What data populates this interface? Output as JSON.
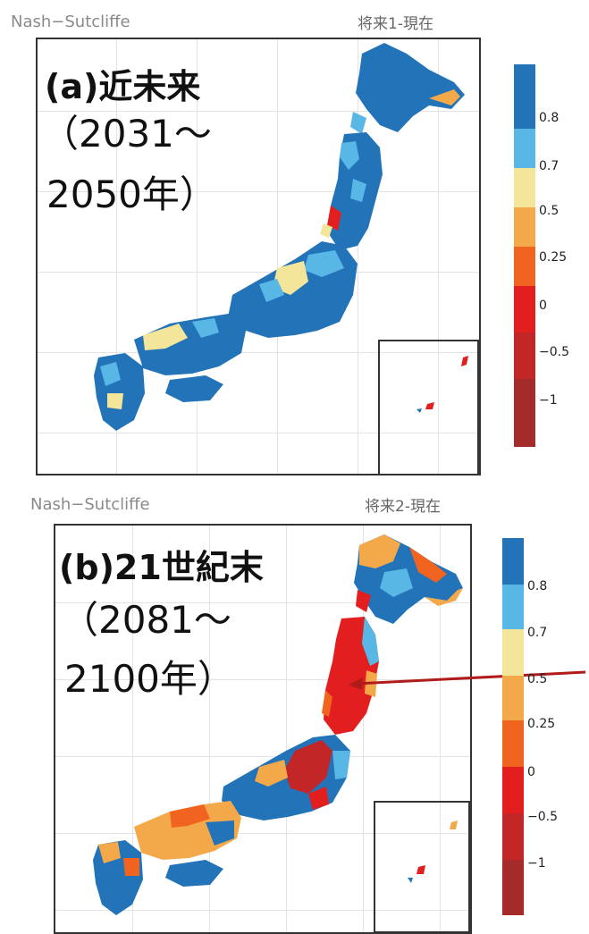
{
  "top_panel": {
    "metric_label": "Nash−Sutcliffe",
    "scenario_label": "将来1-現在",
    "title": "(a)近未来",
    "period_line1": "（2031～",
    "period_line2": "2050年）",
    "legend_ticks": [
      "0.8",
      "0.7",
      "0.5",
      "0.25",
      "0",
      "−0.5",
      "−1"
    ]
  },
  "bottom_panel": {
    "metric_label": "Nash−Sutcliffe",
    "scenario_label": "将来2-現在",
    "title": "(b)21世紀末",
    "period_line1": "（2081～",
    "period_line2": "2100年）",
    "legend_ticks": [
      "0.8",
      "0.7",
      "0.5",
      "0.25",
      "0",
      "−0.5",
      "−1"
    ]
  },
  "legend_colors": [
    "#2373b9",
    "#59b7e6",
    "#f3e59a",
    "#f3a94a",
    "#f0641f",
    "#e31e1e",
    "#c32626",
    "#a52a2a"
  ],
  "map_colors": {
    "high": "#2373b9",
    "mid": "#59b7e6",
    "yellow": "#f3e59a",
    "orange": "#f3a94a",
    "darkorange": "#f0641f",
    "red": "#e31e1e",
    "darkred": "#b52222"
  },
  "arrow_color": "#b01c1c"
}
